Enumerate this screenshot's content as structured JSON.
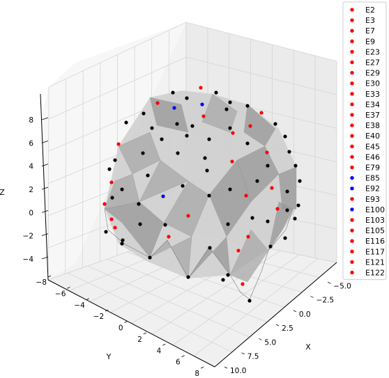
{
  "chart_data": {
    "type": "scatter",
    "projection": "3d",
    "surface": "triangulated mesh, light gray",
    "grid": true,
    "legend_position": "upper-right",
    "axes": {
      "x": {
        "label": "X",
        "ticks": [
          -7.5,
          -5.0,
          -2.5,
          0.0,
          2.5,
          5.0,
          7.5,
          10.0
        ],
        "tick_labels": [
          "−7.5",
          "−5.0",
          "−2.5",
          "0.0",
          "2.5",
          "5.0",
          "7.5",
          "10.0"
        ]
      },
      "y": {
        "label": "Y",
        "ticks": [
          -8,
          -6,
          -4,
          -2,
          0,
          2,
          4,
          6,
          8
        ],
        "tick_labels": [
          "−8",
          "−6",
          "−4",
          "−2",
          "0",
          "2",
          "4",
          "6",
          "8"
        ]
      },
      "z": {
        "label": "Z",
        "ticks": [
          -4,
          -2,
          0,
          2,
          4,
          6,
          8
        ],
        "tick_labels": [
          "−4",
          "−2",
          "0",
          "2",
          "4",
          "6",
          "8"
        ]
      }
    },
    "legend": [
      {
        "name": "E2",
        "color": "#ff0000"
      },
      {
        "name": "E3",
        "color": "#ff0000"
      },
      {
        "name": "E7",
        "color": "#ff0000"
      },
      {
        "name": "E9",
        "color": "#ff0000"
      },
      {
        "name": "E23",
        "color": "#ff0000"
      },
      {
        "name": "E27",
        "color": "#ff0000"
      },
      {
        "name": "E29",
        "color": "#ff0000"
      },
      {
        "name": "E30",
        "color": "#ff0000"
      },
      {
        "name": "E33",
        "color": "#ff0000"
      },
      {
        "name": "E34",
        "color": "#ff0000"
      },
      {
        "name": "E37",
        "color": "#ff0000"
      },
      {
        "name": "E38",
        "color": "#ff0000"
      },
      {
        "name": "E40",
        "color": "#ff0000"
      },
      {
        "name": "E45",
        "color": "#ff0000"
      },
      {
        "name": "E46",
        "color": "#ff0000"
      },
      {
        "name": "E79",
        "color": "#ff0000"
      },
      {
        "name": "E85",
        "color": "#0000ff"
      },
      {
        "name": "E92",
        "color": "#0000ff"
      },
      {
        "name": "E93",
        "color": "#ff0000"
      },
      {
        "name": "E100",
        "color": "#0000ff"
      },
      {
        "name": "E103",
        "color": "#ff0000"
      },
      {
        "name": "E105",
        "color": "#ff0000"
      },
      {
        "name": "E116",
        "color": "#ff0000"
      },
      {
        "name": "E117",
        "color": "#ff0000"
      },
      {
        "name": "E121",
        "color": "#ff0000"
      },
      {
        "name": "E122",
        "color": "#ff0000"
      }
    ],
    "colors": {
      "red": "#ff0000",
      "blue": "#0000ff",
      "black": "#000000",
      "surface": "#bdbdbd"
    }
  }
}
